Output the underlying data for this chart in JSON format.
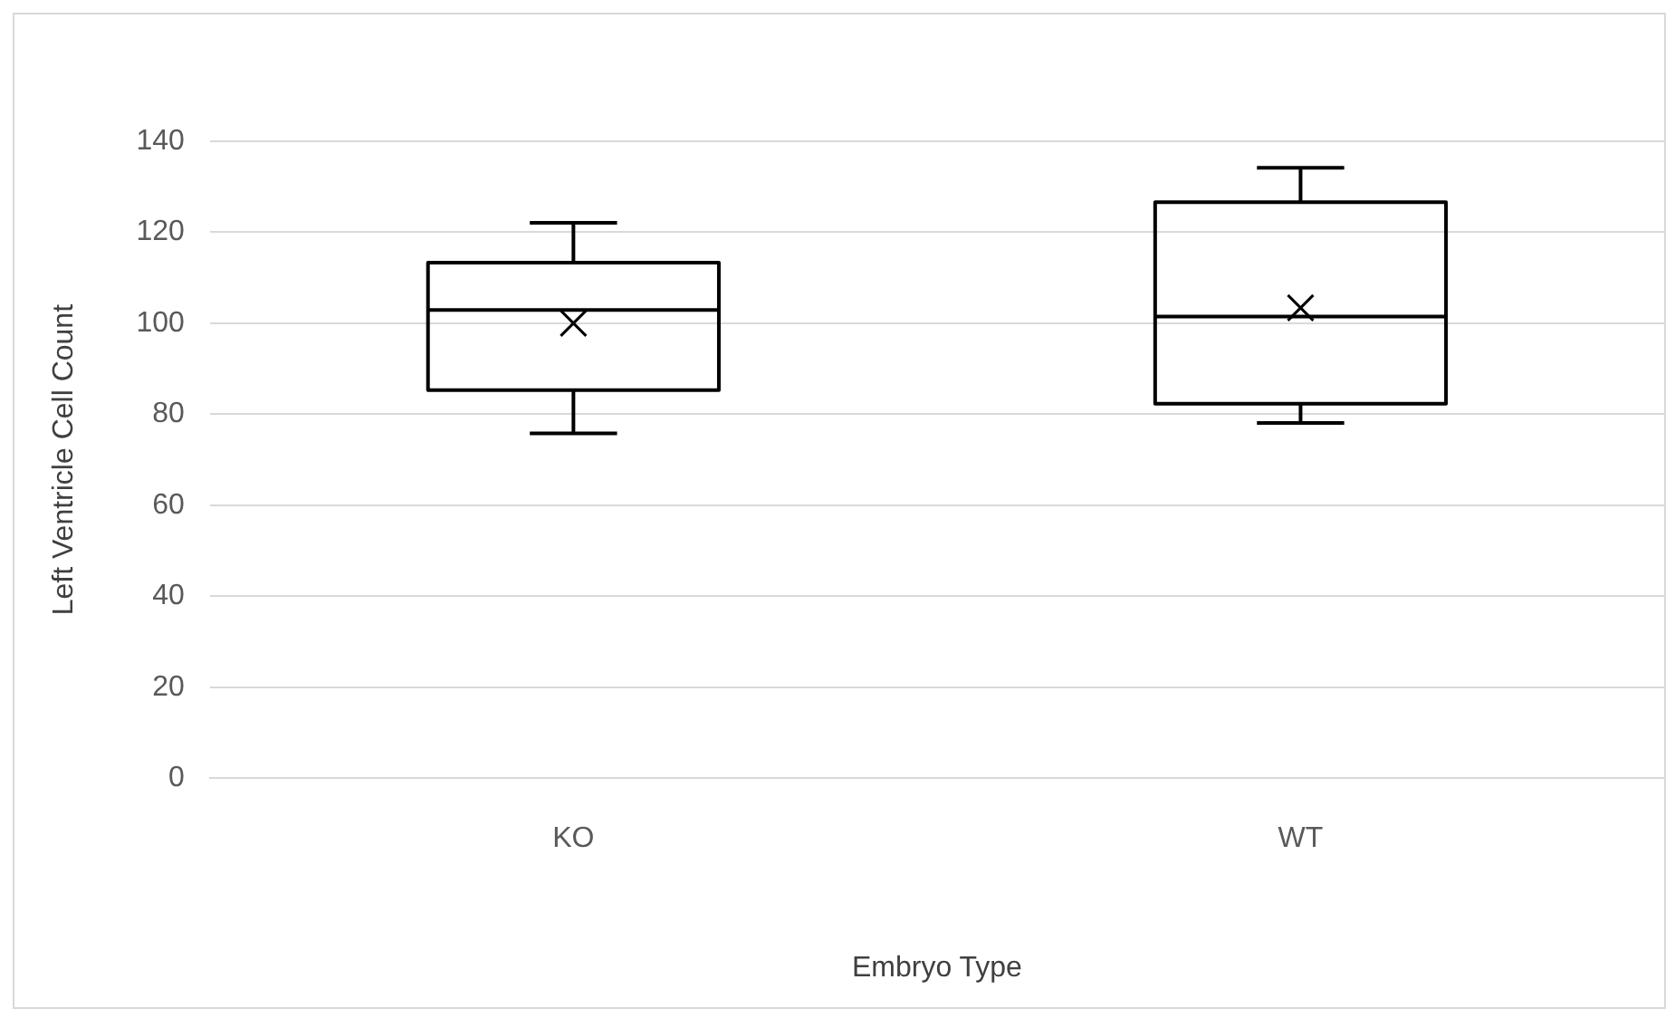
{
  "chart_data": {
    "type": "box",
    "xlabel": "Embryo Type",
    "ylabel": "Left Ventricle Cell Count",
    "categories": [
      "KO",
      "WT"
    ],
    "boxes": [
      {
        "low": 75.8,
        "q1": 85.3,
        "median": 102.9,
        "q3": 113.3,
        "high": 122.1,
        "mean": 100
      },
      {
        "low": 78.1,
        "q1": 82.3,
        "median": 101.5,
        "q3": 126.6,
        "high": 134.2,
        "mean": 103.4
      }
    ],
    "color": "#000000",
    "ylim": [
      0,
      140
    ],
    "yticks": [
      0,
      20,
      40,
      60,
      80,
      100,
      120,
      140
    ],
    "grid": "y",
    "legend": false
  }
}
